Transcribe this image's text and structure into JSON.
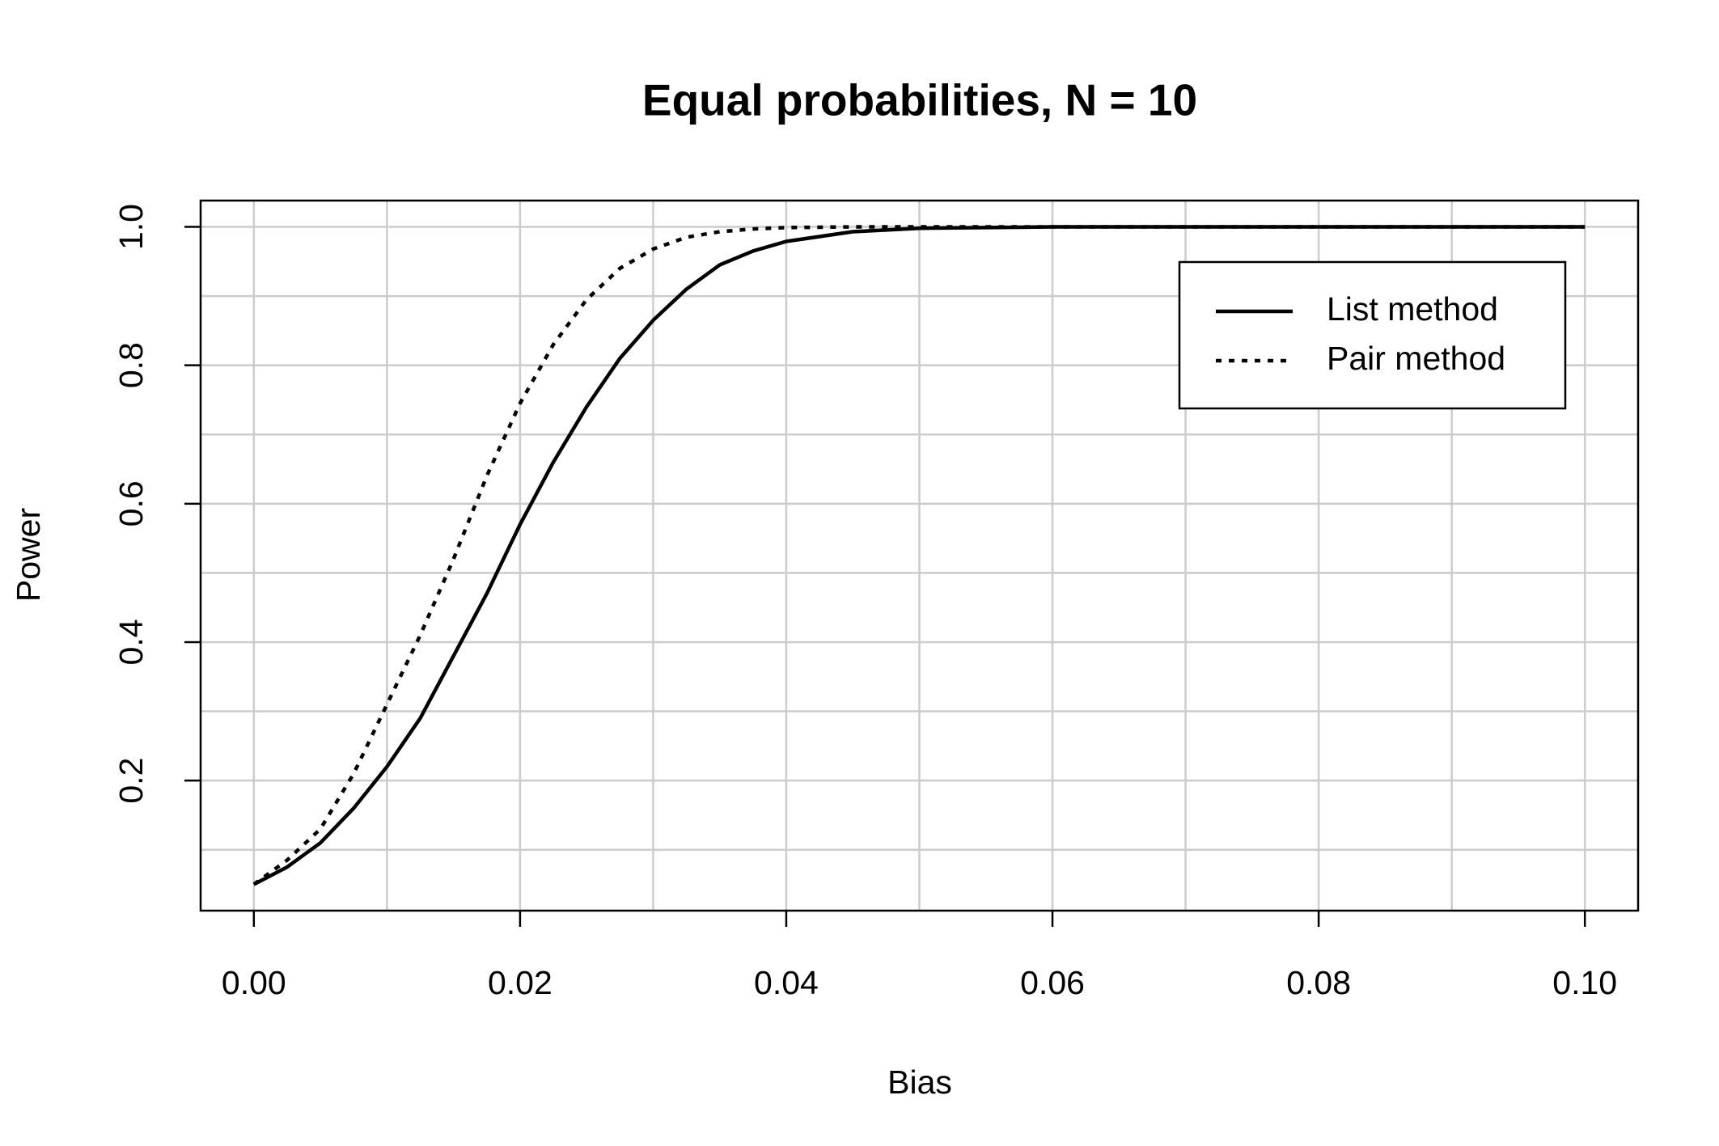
{
  "chart_data": {
    "type": "line",
    "title": "Equal probabilities, N = 10",
    "x_label": "Bias",
    "y_label": "Power",
    "x": [
      0,
      0.0025,
      0.005,
      0.0075,
      0.01,
      0.0125,
      0.015,
      0.0175,
      0.02,
      0.0225,
      0.025,
      0.0275,
      0.03,
      0.0325,
      0.035,
      0.0375,
      0.04,
      0.045,
      0.05,
      0.06,
      0.07,
      0.08,
      0.09,
      0.1
    ],
    "series": [
      {
        "name": "List method",
        "color": "#000000",
        "dash": "solid",
        "values": [
          0.05,
          0.075,
          0.11,
          0.16,
          0.22,
          0.29,
          0.38,
          0.47,
          0.57,
          0.66,
          0.74,
          0.81,
          0.865,
          0.91,
          0.945,
          0.965,
          0.979,
          0.993,
          0.998,
          1,
          1,
          1,
          1,
          1
        ]
      },
      {
        "name": "Pair method",
        "color": "#000000",
        "dash": "dotted",
        "values": [
          0.05,
          0.085,
          0.13,
          0.21,
          0.31,
          0.41,
          0.52,
          0.64,
          0.745,
          0.83,
          0.895,
          0.94,
          0.968,
          0.985,
          0.993,
          0.997,
          0.999,
          1,
          1,
          1,
          1,
          1,
          1,
          1
        ]
      }
    ],
    "xlim": [
      -0.004,
      0.104
    ],
    "ylim": [
      0.012,
      1.038
    ],
    "xticks": [
      {
        "value": 0,
        "label": "0.00"
      },
      {
        "value": 0.02,
        "label": "0.02"
      },
      {
        "value": 0.04,
        "label": "0.04"
      },
      {
        "value": 0.06,
        "label": "0.06"
      },
      {
        "value": 0.08,
        "label": "0.08"
      },
      {
        "value": 0.1,
        "label": "0.10"
      }
    ],
    "yticks": [
      0.2,
      0.4,
      0.6,
      0.8,
      {
        "value": 1,
        "label": "1.0"
      }
    ],
    "xgrid": [
      0,
      0.01,
      0.02,
      0.03,
      0.04,
      0.05,
      0.06,
      0.07,
      0.08,
      0.09,
      0.1
    ],
    "ygrid": [
      0.1,
      0.2,
      0.3,
      0.4,
      0.5,
      0.6,
      0.7,
      0.8,
      0.9,
      1
    ],
    "grid_color": "#cccccc",
    "legend": "topright"
  }
}
